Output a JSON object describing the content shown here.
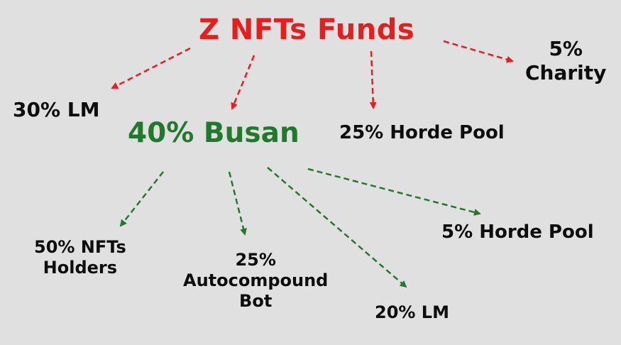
{
  "title": "Z NFTs Funds",
  "colors": {
    "title": "#e61e1e",
    "busan": "#217a2c",
    "text": "#0d0d0d",
    "background": "#e0e0e0"
  },
  "top_allocations": {
    "lm": "30% LM",
    "busan": "40% Busan",
    "horde_pool": "25% Horde Pool",
    "charity": [
      "5%",
      "Charity"
    ]
  },
  "busan_allocations": {
    "nft_holders": [
      "50% NFTs",
      "Holders"
    ],
    "autocompound_bot": [
      "25%",
      "Autocompound",
      "Bot"
    ],
    "lm": "20% LM",
    "horde_pool": "5% Horde Pool"
  }
}
